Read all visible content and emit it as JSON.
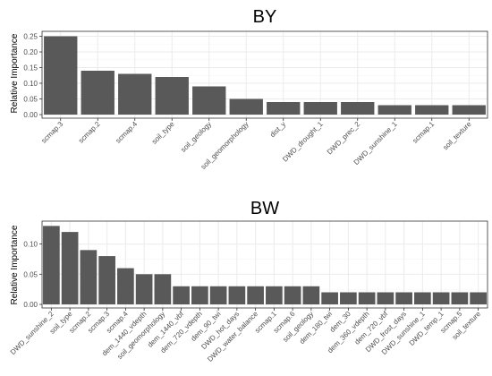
{
  "colors": {
    "bar": "#595959",
    "panel_border": "#333333",
    "grid_major": "#ebebeb",
    "grid_minor": "#f5f5f5",
    "axis_text": "#4d4d4d",
    "title_text": "#000000"
  },
  "chart_data": [
    {
      "type": "bar",
      "title": "BY",
      "xlabel": "",
      "ylabel": "Relative Importance",
      "ylim": [
        0,
        0.26
      ],
      "yticks": [
        0.0,
        0.05,
        0.1,
        0.15,
        0.2,
        0.25
      ],
      "ytick_labels": [
        "0.00",
        "0.05",
        "0.10",
        "0.15",
        "0.20",
        "0.25"
      ],
      "grid": true,
      "categories": [
        "scmap.3",
        "scmap.2",
        "scmap.4",
        "soil_type",
        "soil_geology",
        "soil_geomorphology",
        "dist_y",
        "DWD_drought_1",
        "DWD_prec_2",
        "DWD_sunshine_1",
        "scmap.1",
        "soil_texture"
      ],
      "values": [
        0.25,
        0.14,
        0.13,
        0.12,
        0.09,
        0.05,
        0.04,
        0.04,
        0.04,
        0.03,
        0.03,
        0.03
      ]
    },
    {
      "type": "bar",
      "title": "BW",
      "xlabel": "",
      "ylabel": "Relative Importance",
      "ylim": [
        0,
        0.135
      ],
      "yticks": [
        0.0,
        0.05,
        0.1
      ],
      "ytick_labels": [
        "0.00",
        "0.05",
        "0.10"
      ],
      "grid": true,
      "categories": [
        "DWD_sunshine_2",
        "soil_type",
        "scmap.2",
        "scmap.3",
        "scmap.4",
        "dem_1440_vdepth",
        "soil_geomorphology",
        "dem_1440_vbf",
        "dem_720_vdepth",
        "dem_90_twi",
        "DWD_hot_days",
        "DWD_water_balance",
        "scmap.1",
        "scmap.6",
        "soil_geology",
        "dem_180_twi",
        "dem_30",
        "dem_360_vdepth",
        "dem_720_vbf",
        "DWD_frost_days",
        "DWD_sunshine_1",
        "DWD_temp_1",
        "scmap.5",
        "soil_texture"
      ],
      "values": [
        0.13,
        0.12,
        0.09,
        0.08,
        0.06,
        0.05,
        0.05,
        0.03,
        0.03,
        0.03,
        0.03,
        0.03,
        0.03,
        0.03,
        0.03,
        0.02,
        0.02,
        0.02,
        0.02,
        0.02,
        0.02,
        0.02,
        0.02,
        0.02
      ]
    }
  ]
}
